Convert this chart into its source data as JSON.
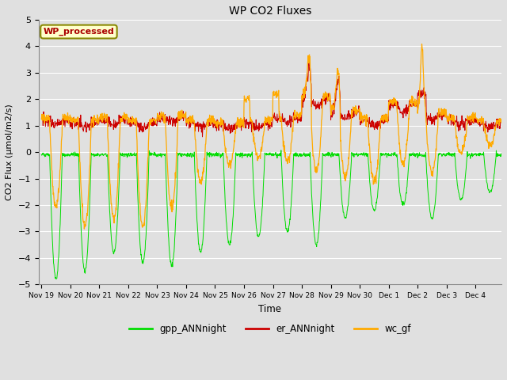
{
  "title": "WP CO2 Fluxes",
  "xlabel": "Time",
  "ylabel": "CO2 Flux (μmol/m2/s)",
  "ylim": [
    -5.0,
    5.0
  ],
  "yticks": [
    -5.0,
    -4.0,
    -3.0,
    -2.0,
    -1.0,
    0.0,
    1.0,
    2.0,
    3.0,
    4.0,
    5.0
  ],
  "bg_color": "#e0e0e0",
  "grid_color": "#ffffff",
  "line_colors": {
    "gpp": "#00dd00",
    "er": "#cc0000",
    "wc": "#ffaa00"
  },
  "line_widths": {
    "gpp": 0.7,
    "er": 0.7,
    "wc": 0.9
  },
  "legend_labels": [
    "gpp_ANNnight",
    "er_ANNnight",
    "wc_gf"
  ],
  "annotation_text": "WP_processed",
  "annotation_color": "#aa0000",
  "annotation_bg": "#ffffcc",
  "annotation_border": "#888800",
  "n_days": 16,
  "points_per_day": 96,
  "xtick_labels": [
    "Nov 19",
    "Nov 20",
    "Nov 21",
    "Nov 22",
    "Nov 23",
    "Nov 24",
    "Nov 25",
    "Nov 26",
    "Nov 27",
    "Nov 28",
    "Nov 29",
    "Nov 30",
    "Dec 1",
    "Dec 2",
    "Dec 3",
    "Dec 4"
  ]
}
